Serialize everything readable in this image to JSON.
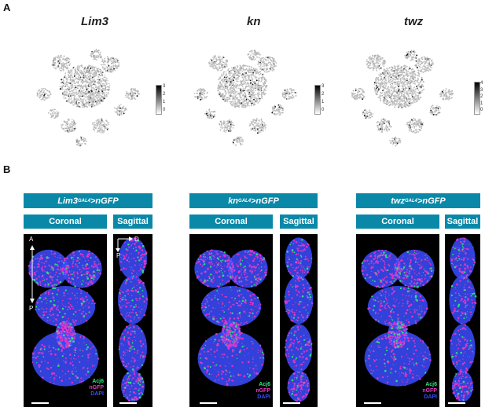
{
  "panelA": {
    "letter": "A",
    "genes": [
      "Lim3",
      "kn",
      "twz"
    ],
    "colorbars": [
      {
        "ticks": [
          "3",
          "2",
          "1",
          "0"
        ]
      },
      {
        "ticks": [
          "3",
          "2",
          "1",
          "0"
        ]
      },
      {
        "ticks": [
          "4",
          "3",
          "2",
          "1",
          "0"
        ]
      }
    ]
  },
  "panelB": {
    "letter": "B",
    "groups": [
      {
        "gene": "Lim3",
        "sup": "GAL4",
        "suffix": ">nGFP"
      },
      {
        "gene": "kn",
        "sup": "GAL4",
        "suffix": ">nGFP"
      },
      {
        "gene": "twz",
        "sup": "GAL4",
        "suffix": ">nGFP"
      }
    ],
    "view_coronal": "Coronal",
    "view_sagittal": "Sagittal",
    "legend": {
      "acj6": "Acj6",
      "ngfp": "nGFP",
      "dapi": "DAPI"
    },
    "axes": {
      "a": "A",
      "p": "P",
      "d": "D",
      "p2": "P"
    },
    "colors": {
      "acj6": "#2ee87a",
      "ngfp": "#e636c8",
      "dapi": "#3a4cff",
      "label_bg": "#0a88a8"
    }
  }
}
